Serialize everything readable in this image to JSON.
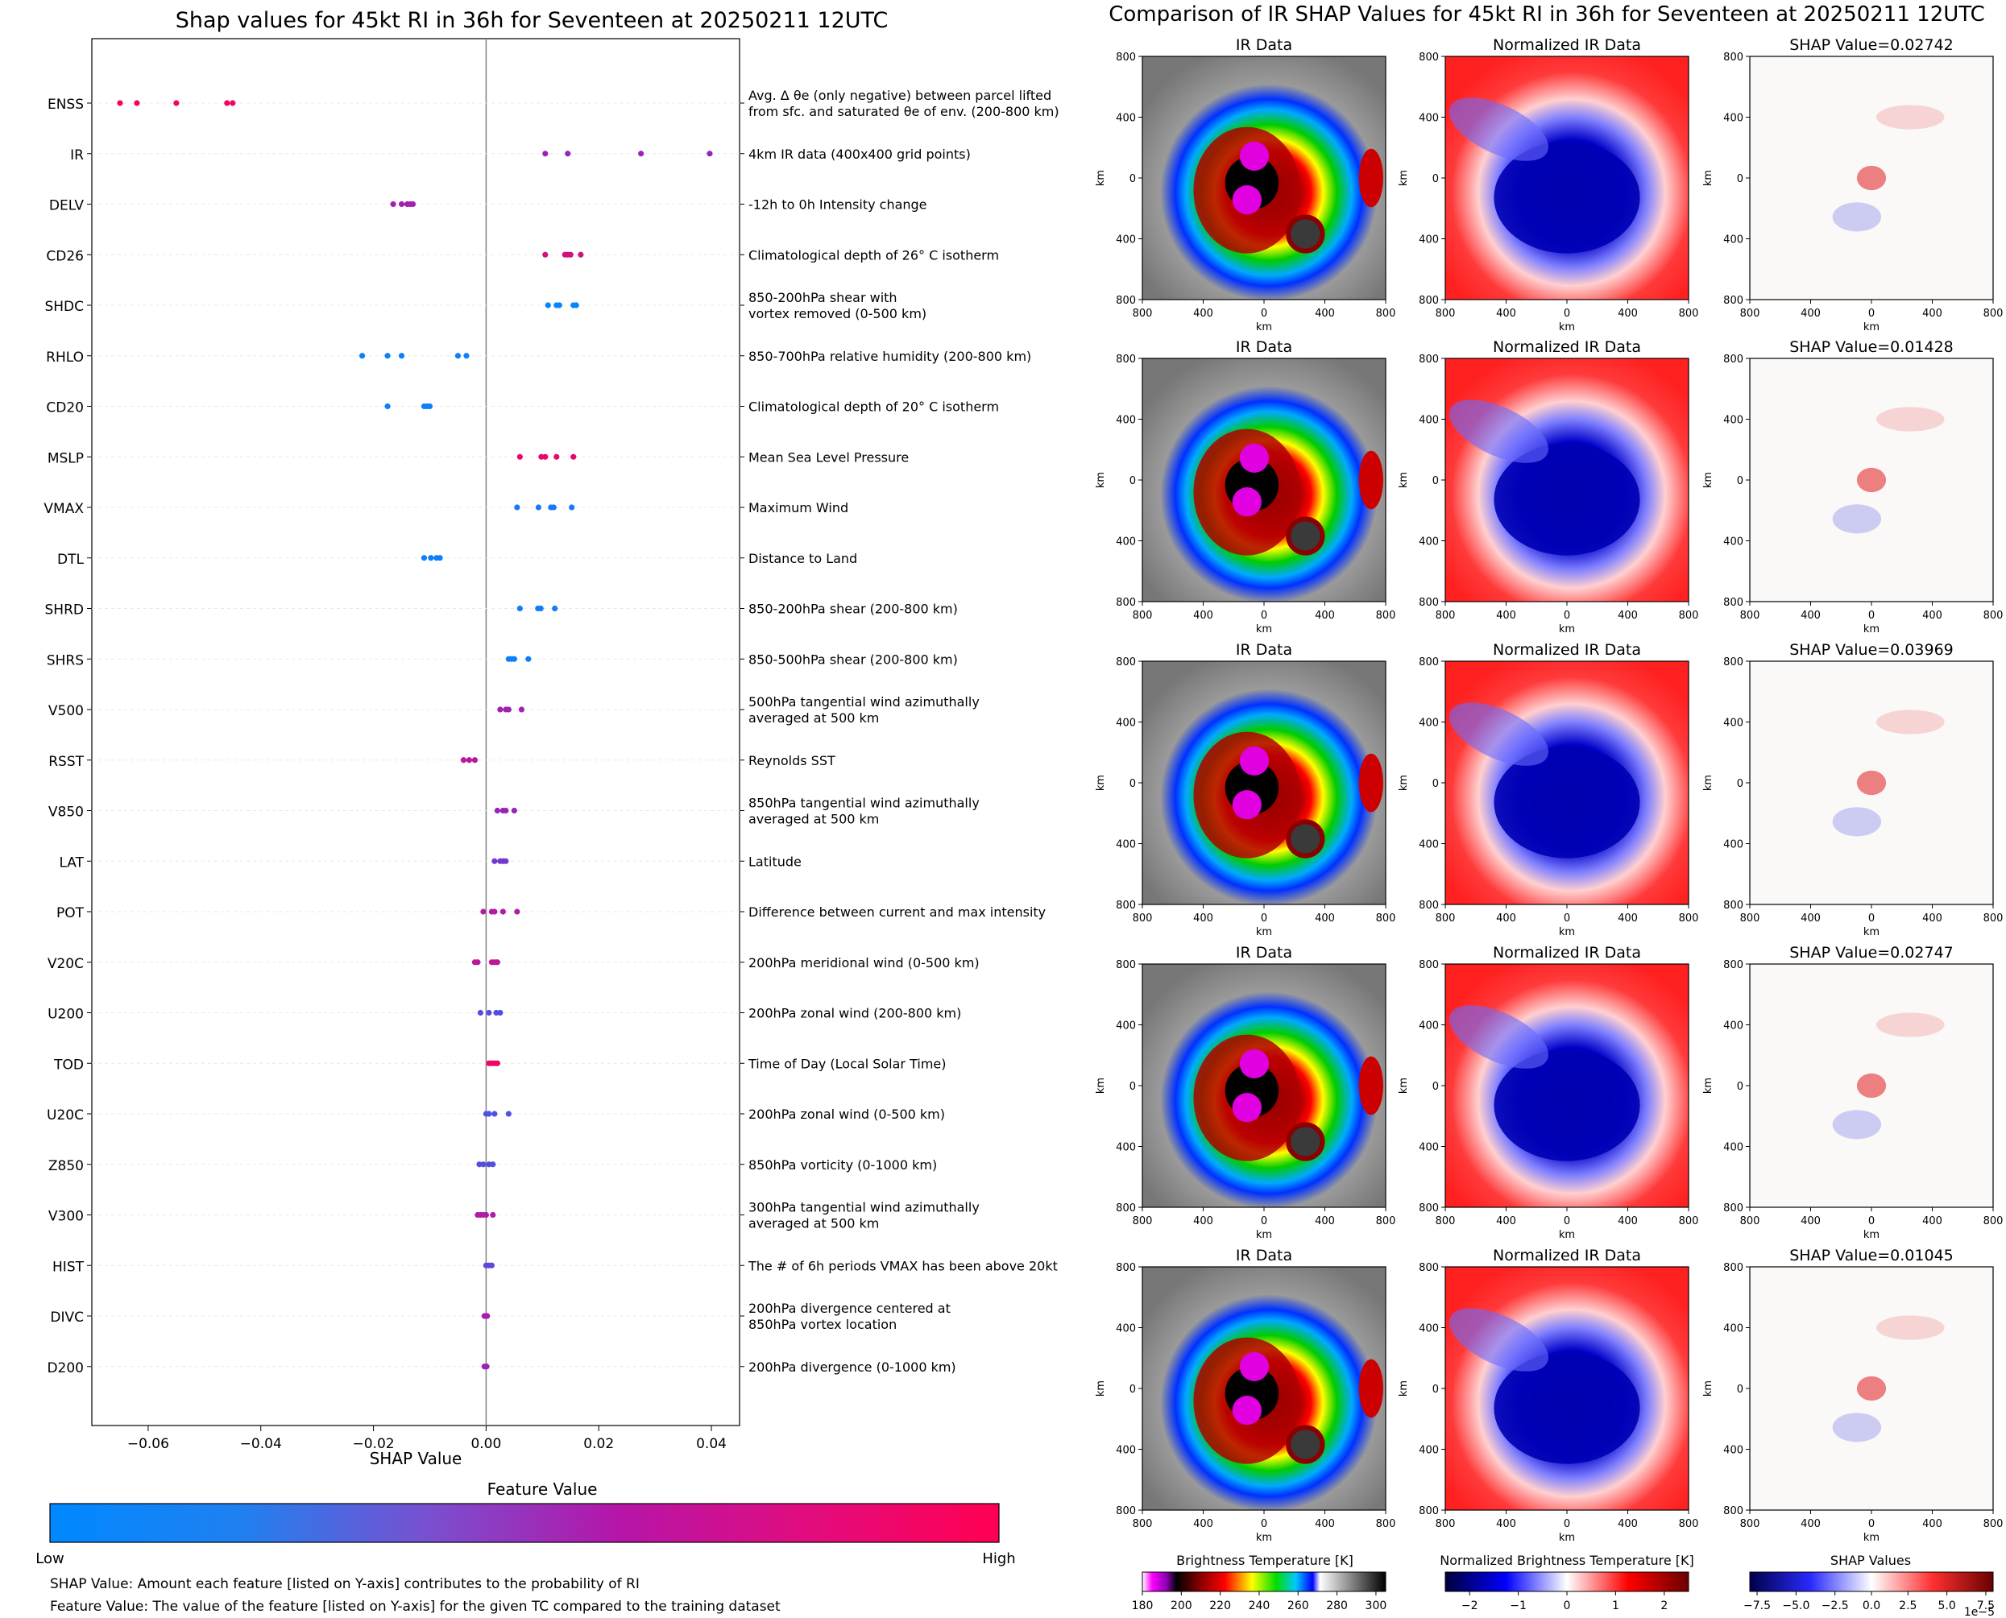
{
  "colors": {
    "low": "#0088ff",
    "high": "#ff0052",
    "shap_neg": "#0000cc",
    "shap_pos": "#cc0000",
    "norm_neg": "#00008b",
    "norm_pos": "#ff2020"
  },
  "left_panel": {
    "title": "Shap values for 45kt RI in 36h for Seventeen at 20250211 12UTC",
    "xlabel": "SHAP Value",
    "colorbar_title": "Feature Value",
    "colorbar_low": "Low",
    "colorbar_high": "High",
    "note1": "SHAP Value: Amount each feature [listed on Y-axis] contributes to the probability of RI",
    "note2": "Feature Value: The value of the feature [listed on Y-axis] for the given TC compared to the training dataset"
  },
  "right_panel": {
    "title": "Comparison of IR SHAP Values for 45kt RI in 36h for Seventeen at 20250211 12UTC",
    "col_titles": [
      "IR Data",
      "Normalized IR Data"
    ],
    "shap_prefix": "SHAP Value=",
    "shap_values": [
      "0.02742",
      "0.01428",
      "0.03969",
      "0.02747",
      "0.01045"
    ],
    "axis_label": "km",
    "ticks": [
      "800",
      "400",
      "0",
      "400",
      "800"
    ],
    "colorbars": [
      {
        "label": "Brightness Temperature [K]",
        "ticks": [
          "180",
          "200",
          "220",
          "240",
          "260",
          "280",
          "300"
        ]
      },
      {
        "label": "Normalized Brightness Temperature [K]",
        "ticks": [
          "−2",
          "−1",
          "0",
          "1",
          "2"
        ]
      },
      {
        "label": "SHAP Values",
        "ticks": [
          "−7.5",
          "−5.0",
          "−2.5",
          "0.0",
          "2.5",
          "5.0",
          "7.5"
        ],
        "offset": "1e−5"
      }
    ]
  },
  "chart_data": {
    "type": "scatter",
    "title": "Shap values for 45kt RI in 36h for Seventeen at 20250211 12UTC",
    "xlabel": "SHAP Value",
    "xlim": [
      -0.07,
      0.045
    ],
    "xticks": [
      "−0.06",
      "−0.04",
      "−0.02",
      "0.00",
      "0.02",
      "0.04"
    ],
    "xtick_values": [
      -0.06,
      -0.04,
      -0.02,
      0.0,
      0.02,
      0.04
    ],
    "features": [
      {
        "name": "ENSS",
        "desc": [
          "Avg. Δ θe (only negative) between parcel lifted",
          "from sfc. and saturated θe of env. (200-800 km)"
        ],
        "values": [
          -0.065,
          -0.062,
          -0.055,
          -0.046,
          -0.045
        ],
        "fv": [
          0.95,
          0.95,
          0.95,
          0.95,
          0.95
        ]
      },
      {
        "name": "IR",
        "desc": [
          "4km IR data (400x400 grid points)"
        ],
        "values": [
          0.0105,
          0.0145,
          0.0275,
          0.0397
        ],
        "fv": [
          0.55,
          0.55,
          0.55,
          0.55
        ]
      },
      {
        "name": "DELV",
        "desc": [
          "-12h to 0h Intensity change"
        ],
        "values": [
          -0.0165,
          -0.015,
          -0.014,
          -0.0135,
          -0.013
        ],
        "fv": [
          0.6,
          0.6,
          0.6,
          0.6,
          0.6
        ]
      },
      {
        "name": "CD26",
        "desc": [
          "Climatological depth of 26° C isotherm"
        ],
        "values": [
          0.0105,
          0.014,
          0.0145,
          0.015,
          0.0168
        ],
        "fv": [
          0.8,
          0.8,
          0.8,
          0.8,
          0.8
        ]
      },
      {
        "name": "SHDC",
        "desc": [
          "850-200hPa shear with",
          "vortex removed (0-500 km)"
        ],
        "values": [
          0.011,
          0.0125,
          0.013,
          0.0155,
          0.016
        ],
        "fv": [
          0.02,
          0.02,
          0.02,
          0.02,
          0.02
        ]
      },
      {
        "name": "RHLO",
        "desc": [
          "850-700hPa relative humidity (200-800 km)"
        ],
        "values": [
          -0.022,
          -0.0175,
          -0.015,
          -0.005,
          -0.0035
        ],
        "fv": [
          0.05,
          0.05,
          0.05,
          0.05,
          0.05
        ]
      },
      {
        "name": "CD20",
        "desc": [
          "Climatological depth of 20° C isotherm"
        ],
        "values": [
          -0.0175,
          -0.011,
          -0.0105,
          -0.01
        ],
        "fv": [
          0.05,
          0.05,
          0.05,
          0.05
        ]
      },
      {
        "name": "MSLP",
        "desc": [
          "Mean Sea Level Pressure"
        ],
        "values": [
          0.006,
          0.0098,
          0.0105,
          0.0125,
          0.0155
        ],
        "fv": [
          0.9,
          0.9,
          0.9,
          0.9,
          0.9
        ]
      },
      {
        "name": "VMAX",
        "desc": [
          "Maximum Wind"
        ],
        "values": [
          0.0055,
          0.0093,
          0.0115,
          0.012,
          0.0152
        ],
        "fv": [
          0.08,
          0.08,
          0.08,
          0.08,
          0.08
        ]
      },
      {
        "name": "DTL",
        "desc": [
          "Distance to Land"
        ],
        "values": [
          -0.011,
          -0.0098,
          -0.0088,
          -0.0082
        ],
        "fv": [
          0.05,
          0.05,
          0.05,
          0.05
        ]
      },
      {
        "name": "SHRD",
        "desc": [
          "850-200hPa shear (200-800 km)"
        ],
        "values": [
          0.006,
          0.0092,
          0.0097,
          0.0122
        ],
        "fv": [
          0.06,
          0.06,
          0.06,
          0.06
        ]
      },
      {
        "name": "SHRS",
        "desc": [
          "850-500hPa shear (200-800 km)"
        ],
        "values": [
          0.004,
          0.0045,
          0.005,
          0.0075
        ],
        "fv": [
          0.04,
          0.04,
          0.04,
          0.04
        ]
      },
      {
        "name": "V500",
        "desc": [
          "500hPa tangential wind azimuthally",
          "averaged at 500 km"
        ],
        "values": [
          0.0025,
          0.0035,
          0.004,
          0.0063
        ],
        "fv": [
          0.6,
          0.6,
          0.6,
          0.6
        ]
      },
      {
        "name": "RSST",
        "desc": [
          "Reynolds SST"
        ],
        "values": [
          -0.004,
          -0.003,
          -0.002
        ],
        "fv": [
          0.7,
          0.7,
          0.7
        ]
      },
      {
        "name": "V850",
        "desc": [
          "850hPa tangential wind azimuthally",
          "averaged at 500 km"
        ],
        "values": [
          0.002,
          0.003,
          0.0035,
          0.005
        ],
        "fv": [
          0.55,
          0.55,
          0.55,
          0.55
        ]
      },
      {
        "name": "LAT",
        "desc": [
          "Latitude"
        ],
        "values": [
          0.0015,
          0.0025,
          0.003,
          0.0035
        ],
        "fv": [
          0.42,
          0.42,
          0.42,
          0.42
        ]
      },
      {
        "name": "POT",
        "desc": [
          "Difference between current and max intensity"
        ],
        "values": [
          -0.0005,
          0.001,
          0.0015,
          0.003,
          0.0055
        ],
        "fv": [
          0.65,
          0.65,
          0.65,
          0.65,
          0.65
        ]
      },
      {
        "name": "V20C",
        "desc": [
          "200hPa meridional wind (0-500 km)"
        ],
        "values": [
          -0.002,
          -0.0015,
          0.001,
          0.0015,
          0.002
        ],
        "fv": [
          0.7,
          0.7,
          0.7,
          0.7,
          0.7
        ]
      },
      {
        "name": "U200",
        "desc": [
          "200hPa zonal wind (200-800 km)"
        ],
        "values": [
          -0.001,
          0.0005,
          0.0018,
          0.0025
        ],
        "fv": [
          0.3,
          0.3,
          0.3,
          0.3
        ]
      },
      {
        "name": "TOD",
        "desc": [
          "Time of Day (Local Solar Time)"
        ],
        "values": [
          0.0005,
          0.001,
          0.0015,
          0.002
        ],
        "fv": [
          0.93,
          0.93,
          0.93,
          0.93
        ]
      },
      {
        "name": "U20C",
        "desc": [
          "200hPa zonal wind (0-500 km)"
        ],
        "values": [
          0.0,
          0.0005,
          0.0015,
          0.004
        ],
        "fv": [
          0.28,
          0.28,
          0.28,
          0.28
        ]
      },
      {
        "name": "Z850",
        "desc": [
          "850hPa vorticity (0-1000 km)"
        ],
        "values": [
          -0.0012,
          -0.0005,
          0.0005,
          0.0012
        ],
        "fv": [
          0.3,
          0.3,
          0.3,
          0.3
        ]
      },
      {
        "name": "V300",
        "desc": [
          "300hPa tangential wind azimuthally",
          "averaged at 500 km"
        ],
        "values": [
          -0.0015,
          -0.001,
          -0.0005,
          0.0,
          0.0012
        ],
        "fv": [
          0.65,
          0.65,
          0.65,
          0.65,
          0.65
        ]
      },
      {
        "name": "HIST",
        "desc": [
          "The # of 6h periods VMAX has been above 20kt"
        ],
        "values": [
          0.0,
          0.0005,
          0.001
        ],
        "fv": [
          0.35,
          0.35,
          0.35
        ]
      },
      {
        "name": "DIVC",
        "desc": [
          "200hPa divergence centered at",
          "850hPa vortex location"
        ],
        "values": [
          -0.0003,
          0.0,
          0.0002
        ],
        "fv": [
          0.62,
          0.62,
          0.62
        ]
      },
      {
        "name": "D200",
        "desc": [
          "200hPa divergence (0-1000 km)"
        ],
        "values": [
          -0.0003,
          0.0,
          0.0001
        ],
        "fv": [
          0.58,
          0.58,
          0.58
        ]
      }
    ]
  }
}
